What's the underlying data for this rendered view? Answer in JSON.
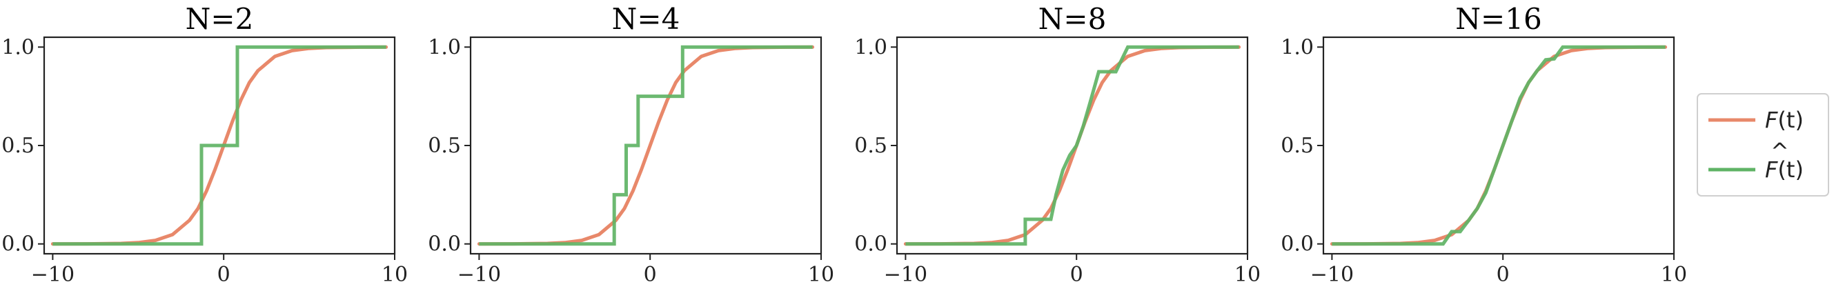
{
  "chart_data": {
    "type": "line",
    "xlim": [
      -10.5,
      10
    ],
    "ylim": [
      -0.05,
      1.05
    ],
    "xticks": [
      -10,
      0,
      10
    ],
    "yticks": [
      0.0,
      0.5,
      1.0
    ],
    "xtick_labels": [
      "−10",
      "0",
      "10"
    ],
    "ytick_labels": [
      "0.0",
      "0.5",
      "1.0"
    ],
    "grid": false,
    "legend": {
      "placement": "right",
      "entries": [
        {
          "label_base": "F",
          "label_arg": "(t)",
          "hat": false,
          "color": "#e8886a"
        },
        {
          "label_base": "F",
          "label_arg": "(t)",
          "hat": true,
          "color": "#5fb365"
        }
      ]
    },
    "true_cdf": {
      "name": "F(t)",
      "color": "#e8886a",
      "x": [
        -10,
        -8,
        -6,
        -5,
        -4,
        -3,
        -2,
        -1.5,
        -1,
        -0.5,
        0,
        0.5,
        1,
        1.5,
        2,
        3,
        4,
        5,
        6,
        8,
        9.5
      ],
      "y": [
        5e-05,
        0.0003,
        0.0025,
        0.0067,
        0.018,
        0.047,
        0.12,
        0.18,
        0.27,
        0.38,
        0.5,
        0.62,
        0.73,
        0.82,
        0.88,
        0.953,
        0.982,
        0.9933,
        0.9975,
        0.9997,
        0.99995
      ]
    },
    "panels": [
      {
        "title": "N=2",
        "estimate": {
          "name": "F̂(t)",
          "color": "#5fb365",
          "x": [
            -10,
            -1.3,
            -1.3,
            0.8,
            0.8,
            9.5
          ],
          "y": [
            0,
            0,
            0.5,
            0.5,
            1,
            1
          ]
        }
      },
      {
        "title": "N=4",
        "estimate": {
          "name": "F̂(t)",
          "color": "#5fb365",
          "x": [
            -10,
            -2.1,
            -2.1,
            -1.4,
            -1.4,
            -0.7,
            -0.7,
            0.3,
            0.3,
            1.9,
            1.9,
            9.5
          ],
          "y": [
            0,
            0,
            0.25,
            0.25,
            0.5,
            0.5,
            0.75,
            0.75,
            0.75,
            0.75,
            1,
            1
          ]
        }
      },
      {
        "title": "N=8",
        "estimate": {
          "name": "F̂(t)",
          "color": "#5fb365",
          "x": [
            -10,
            -3.0,
            -3.0,
            -2.5,
            -2.5,
            -1.5,
            -1.2,
            -0.8,
            -0.4,
            0,
            0.4,
            0.8,
            1.3,
            1.3,
            2.3,
            2.3,
            3.0,
            3.0,
            9.5
          ],
          "y": [
            0,
            0,
            0.125,
            0.125,
            0.125,
            0.125,
            0.25,
            0.375,
            0.45,
            0.5,
            0.6,
            0.72,
            0.875,
            0.875,
            0.875,
            0.875,
            1,
            1,
            1
          ]
        }
      },
      {
        "title": "N=16",
        "estimate": {
          "name": "F̂(t)",
          "color": "#5fb365",
          "x": [
            -10,
            -3.5,
            -3.0,
            -2.5,
            -2.0,
            -1.5,
            -1.0,
            -0.5,
            0,
            0.5,
            1.0,
            1.5,
            2.0,
            2.5,
            3.0,
            3.5,
            9.5
          ],
          "y": [
            0,
            0,
            0.0625,
            0.0625,
            0.12,
            0.18,
            0.26,
            0.38,
            0.5,
            0.62,
            0.74,
            0.82,
            0.88,
            0.935,
            0.94,
            1,
            1
          ]
        }
      }
    ]
  }
}
